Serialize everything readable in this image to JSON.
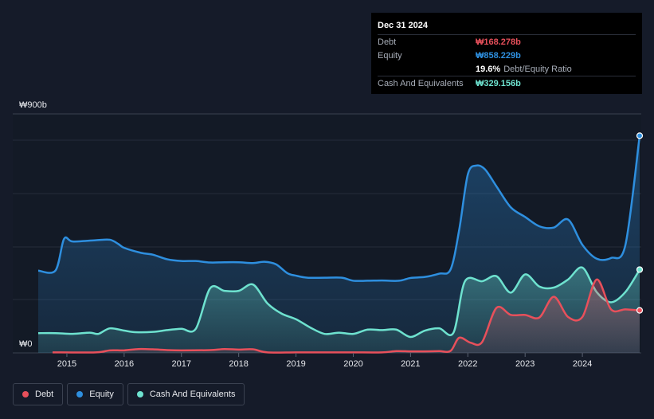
{
  "tooltip": {
    "date": "Dec 31 2024",
    "rows": [
      {
        "label": "Debt",
        "value": "₩168.278b",
        "color": "#e8505b"
      },
      {
        "label": "Equity",
        "value": "₩858.229b",
        "color": "#2e8fdf"
      },
      {
        "label": "",
        "value": "19.6%",
        "suffix": "Debt/Equity Ratio",
        "color": "#ffffff"
      },
      {
        "label": "Cash And Equivalents",
        "value": "₩329.156b",
        "color": "#6ee2cf"
      }
    ]
  },
  "legend": [
    {
      "label": "Debt",
      "color": "#e8505b"
    },
    {
      "label": "Equity",
      "color": "#2e8fdf"
    },
    {
      "label": "Cash And Equivalents",
      "color": "#6ee2cf"
    }
  ],
  "chart_data": {
    "type": "area",
    "y_top_label": "₩900b",
    "y_bottom_label": "₩0",
    "ylim": [
      0,
      900
    ],
    "xlim": [
      2014.5,
      2025.0
    ],
    "x_ticks": [
      2015,
      2016,
      2017,
      2018,
      2019,
      2020,
      2021,
      2022,
      2023,
      2024
    ],
    "x_tick_labels": [
      "2015",
      "2016",
      "2017",
      "2018",
      "2019",
      "2020",
      "2021",
      "2022",
      "2023",
      "2024"
    ],
    "grid": true,
    "legend_position": "bottom-left",
    "series": [
      {
        "name": "Equity",
        "color": "#2e8fdf",
        "points": [
          [
            2014.5,
            325
          ],
          [
            2014.8,
            325
          ],
          [
            2014.95,
            450
          ],
          [
            2015.1,
            440
          ],
          [
            2015.5,
            445
          ],
          [
            2015.75,
            447
          ],
          [
            2015.9,
            430
          ],
          [
            2016.0,
            415
          ],
          [
            2016.3,
            395
          ],
          [
            2016.5,
            388
          ],
          [
            2016.75,
            370
          ],
          [
            2017.0,
            363
          ],
          [
            2017.25,
            363
          ],
          [
            2017.5,
            357
          ],
          [
            2017.75,
            358
          ],
          [
            2018.0,
            358
          ],
          [
            2018.25,
            355
          ],
          [
            2018.45,
            360
          ],
          [
            2018.65,
            350
          ],
          [
            2018.85,
            315
          ],
          [
            2019.0,
            305
          ],
          [
            2019.2,
            297
          ],
          [
            2019.5,
            297
          ],
          [
            2019.8,
            297
          ],
          [
            2020.0,
            285
          ],
          [
            2020.25,
            285
          ],
          [
            2020.5,
            286
          ],
          [
            2020.8,
            285
          ],
          [
            2021.0,
            296
          ],
          [
            2021.25,
            300
          ],
          [
            2021.5,
            313
          ],
          [
            2021.7,
            330
          ],
          [
            2021.85,
            487
          ],
          [
            2022.0,
            705
          ],
          [
            2022.15,
            740
          ],
          [
            2022.3,
            725
          ],
          [
            2022.5,
            658
          ],
          [
            2022.75,
            575
          ],
          [
            2023.0,
            537
          ],
          [
            2023.25,
            500
          ],
          [
            2023.5,
            495
          ],
          [
            2023.75,
            527
          ],
          [
            2024.0,
            427
          ],
          [
            2024.25,
            372
          ],
          [
            2024.5,
            375
          ],
          [
            2024.75,
            425
          ],
          [
            2025.0,
            858
          ]
        ]
      },
      {
        "name": "Cash And Equivalents",
        "color": "#6ee2cf",
        "points": [
          [
            2014.5,
            78
          ],
          [
            2014.8,
            78
          ],
          [
            2015.1,
            75
          ],
          [
            2015.4,
            80
          ],
          [
            2015.55,
            75
          ],
          [
            2015.75,
            97
          ],
          [
            2016.0,
            88
          ],
          [
            2016.2,
            82
          ],
          [
            2016.5,
            83
          ],
          [
            2016.75,
            90
          ],
          [
            2017.0,
            95
          ],
          [
            2017.25,
            95
          ],
          [
            2017.5,
            255
          ],
          [
            2017.75,
            245
          ],
          [
            2018.0,
            245
          ],
          [
            2018.25,
            270
          ],
          [
            2018.5,
            196
          ],
          [
            2018.75,
            155
          ],
          [
            2019.0,
            133
          ],
          [
            2019.25,
            100
          ],
          [
            2019.5,
            75
          ],
          [
            2019.75,
            80
          ],
          [
            2020.0,
            75
          ],
          [
            2020.25,
            92
          ],
          [
            2020.5,
            90
          ],
          [
            2020.75,
            92
          ],
          [
            2021.0,
            63
          ],
          [
            2021.25,
            88
          ],
          [
            2021.5,
            97
          ],
          [
            2021.75,
            80
          ],
          [
            2021.95,
            283
          ],
          [
            2022.25,
            283
          ],
          [
            2022.5,
            303
          ],
          [
            2022.75,
            238
          ],
          [
            2023.0,
            310
          ],
          [
            2023.25,
            262
          ],
          [
            2023.5,
            258
          ],
          [
            2023.75,
            290
          ],
          [
            2024.0,
            337
          ],
          [
            2024.25,
            240
          ],
          [
            2024.5,
            200
          ],
          [
            2024.75,
            240
          ],
          [
            2025.0,
            329
          ]
        ]
      },
      {
        "name": "Debt",
        "color": "#e8505b",
        "points": [
          [
            2014.75,
            2
          ],
          [
            2015.5,
            2
          ],
          [
            2015.75,
            10
          ],
          [
            2016.0,
            10
          ],
          [
            2016.25,
            15
          ],
          [
            2016.5,
            14
          ],
          [
            2016.75,
            11
          ],
          [
            2017.0,
            10
          ],
          [
            2017.5,
            11
          ],
          [
            2017.75,
            15
          ],
          [
            2018.0,
            13
          ],
          [
            2018.25,
            14
          ],
          [
            2018.5,
            2
          ],
          [
            2019.0,
            2
          ],
          [
            2019.5,
            2
          ],
          [
            2020.0,
            2
          ],
          [
            2020.5,
            2
          ],
          [
            2020.75,
            7
          ],
          [
            2021.0,
            6
          ],
          [
            2021.25,
            6
          ],
          [
            2021.5,
            7
          ],
          [
            2021.7,
            8
          ],
          [
            2021.85,
            60
          ],
          [
            2022.05,
            40
          ],
          [
            2022.25,
            43
          ],
          [
            2022.5,
            178
          ],
          [
            2022.75,
            150
          ],
          [
            2023.0,
            150
          ],
          [
            2023.25,
            140
          ],
          [
            2023.5,
            222
          ],
          [
            2023.75,
            142
          ],
          [
            2024.0,
            142
          ],
          [
            2024.25,
            290
          ],
          [
            2024.5,
            172
          ],
          [
            2024.75,
            172
          ],
          [
            2025.0,
            168
          ]
        ]
      }
    ]
  }
}
